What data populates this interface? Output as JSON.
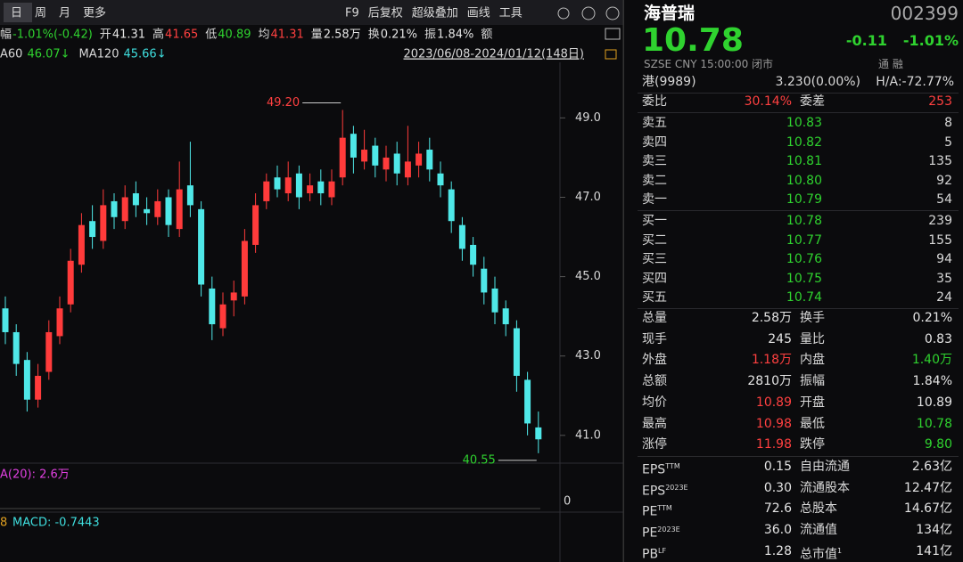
{
  "toolbar": {
    "periods": [
      "日",
      "周",
      "月",
      "更多"
    ],
    "tools": [
      "F9",
      "后复权",
      "超级叠加",
      "画线",
      "工具"
    ]
  },
  "quote_bar": [
    {
      "label": "幅",
      "value": "-1.01%(-0.42)",
      "color": "green"
    },
    {
      "label": "开",
      "value": "41.31",
      "color": "white"
    },
    {
      "label": "高",
      "value": "41.65",
      "color": "red"
    },
    {
      "label": "低",
      "value": "40.89",
      "color": "green"
    },
    {
      "label": "均",
      "value": "41.31",
      "color": "red"
    },
    {
      "label": "量",
      "value": "2.58万",
      "color": "white"
    },
    {
      "label": "换",
      "value": "0.21%",
      "color": "white"
    },
    {
      "label": "振",
      "value": "1.84%",
      "color": "white"
    },
    {
      "label": "额"
    }
  ],
  "ma_legend": [
    {
      "label": "A60",
      "value": "46.07↓",
      "color": "green"
    },
    {
      "label": "MA120",
      "value": "45.66↓",
      "color": "cyan"
    }
  ],
  "date_range": "2023/06/08-2024/01/12(148日)",
  "price_chart": {
    "type": "candlestick",
    "ylim": [
      40.3,
      50.4
    ],
    "yticks": [
      {
        "value": 41,
        "label": "41.0"
      },
      {
        "value": 43,
        "label": "43.0"
      },
      {
        "value": 45,
        "label": "45.0"
      },
      {
        "value": 47,
        "label": "47.0"
      },
      {
        "value": 49,
        "label": "49.0"
      }
    ],
    "up_color": "#ff3b3b",
    "down_color": "#4fe8e8",
    "open": [
      44.2,
      43.6,
      42.9,
      41.9,
      42.6,
      43.5,
      44.3,
      45.3,
      46.4,
      45.9,
      46.9,
      46.4,
      47.1,
      46.7,
      46.5,
      47.0,
      46.2,
      47.3,
      46.7,
      44.7,
      43.7,
      44.4,
      44.5,
      45.8,
      46.9,
      47.5,
      47.1,
      47.6,
      47.1,
      47.4,
      47.0,
      47.5,
      48.6,
      47.9,
      48.3,
      47.7,
      48.1,
      47.5,
      47.8,
      48.2,
      47.6,
      47.2,
      46.3,
      45.8,
      45.2,
      44.7,
      44.2,
      43.7,
      42.4,
      41.2
    ],
    "high": [
      44.5,
      43.8,
      43.1,
      42.8,
      43.9,
      44.5,
      45.7,
      46.6,
      46.8,
      47.2,
      47.1,
      47.3,
      47.4,
      47.0,
      47.2,
      47.2,
      47.9,
      48.4,
      46.9,
      45.0,
      44.6,
      44.9,
      46.2,
      47.1,
      47.6,
      47.8,
      47.9,
      47.8,
      47.6,
      47.7,
      47.7,
      49.2,
      48.8,
      48.7,
      48.5,
      48.3,
      48.4,
      48.8,
      48.4,
      48.5,
      47.9,
      47.4,
      46.5,
      46.0,
      45.5,
      45.0,
      44.4,
      43.9,
      42.6,
      41.6
    ],
    "low": [
      43.3,
      42.5,
      41.6,
      41.7,
      42.4,
      43.3,
      44.1,
      45.1,
      45.7,
      45.7,
      46.2,
      46.2,
      46.5,
      46.3,
      46.3,
      46.0,
      46.0,
      46.5,
      44.5,
      43.4,
      43.5,
      44.0,
      44.3,
      45.6,
      46.7,
      47.0,
      46.9,
      46.7,
      46.9,
      46.8,
      46.8,
      47.3,
      47.6,
      47.7,
      47.5,
      47.4,
      47.3,
      47.3,
      47.5,
      47.4,
      47.0,
      46.1,
      45.4,
      45.0,
      44.3,
      43.8,
      43.5,
      42.1,
      41.0,
      40.55
    ],
    "close": [
      43.6,
      42.8,
      41.9,
      42.5,
      43.6,
      44.2,
      45.4,
      46.3,
      46.0,
      46.8,
      46.5,
      47.0,
      46.8,
      46.6,
      46.9,
      46.3,
      47.2,
      46.8,
      44.8,
      43.8,
      44.3,
      44.6,
      45.9,
      46.8,
      47.4,
      47.2,
      47.5,
      47.0,
      47.3,
      47.1,
      47.4,
      48.5,
      48.0,
      48.2,
      47.8,
      48.0,
      47.6,
      47.9,
      48.1,
      47.7,
      47.3,
      46.4,
      45.7,
      45.3,
      44.6,
      44.1,
      43.8,
      42.5,
      41.3,
      40.9
    ],
    "annotations": [
      {
        "label": "49.20",
        "value": 49.2,
        "color": "red"
      },
      {
        "label": "40.55",
        "value": 40.55,
        "color": "green"
      }
    ]
  },
  "volume_panel": {
    "label": "A(20): 2.6万",
    "yticks": [
      0
    ]
  },
  "macd_panel": {
    "prefix": "8",
    "label": "MACD: -0.7443"
  },
  "stock": {
    "name": "海普瑞",
    "code": "002399",
    "price": "10.78",
    "change": "-0.11",
    "change_pct": "-1.01%",
    "status": "SZSE  CNY  15:00:00  闭市",
    "flags": "通 融"
  },
  "hk_row": {
    "label": "港(9989)",
    "value": "3.230(0.00%)",
    "ha": "H/A:-72.77%"
  },
  "commission": [
    {
      "label": "委比",
      "value": "30.14%",
      "color": "red"
    },
    {
      "label": "委差",
      "value": "253",
      "color": "red"
    }
  ],
  "sell": [
    {
      "label": "卖五",
      "price": "10.83",
      "volume": "8"
    },
    {
      "label": "卖四",
      "price": "10.82",
      "volume": "5"
    },
    {
      "label": "卖三",
      "price": "10.81",
      "volume": "135"
    },
    {
      "label": "卖二",
      "price": "10.80",
      "volume": "92"
    },
    {
      "label": "卖一",
      "price": "10.79",
      "volume": "54"
    }
  ],
  "buy": [
    {
      "label": "买一",
      "price": "10.78",
      "volume": "239"
    },
    {
      "label": "买二",
      "price": "10.77",
      "volume": "155"
    },
    {
      "label": "买三",
      "price": "10.76",
      "volume": "94"
    },
    {
      "label": "买四",
      "price": "10.75",
      "volume": "35"
    },
    {
      "label": "买五",
      "price": "10.74",
      "volume": "24"
    }
  ],
  "stats": [
    [
      {
        "label": "总量",
        "value": "2.58万",
        "color": "white"
      },
      {
        "label": "换手",
        "value": "0.21%",
        "color": "white"
      }
    ],
    [
      {
        "label": "现手",
        "value": "245",
        "color": "white"
      },
      {
        "label": "量比",
        "value": "0.83",
        "color": "white"
      }
    ],
    [
      {
        "label": "外盘",
        "value": "1.18万",
        "color": "red"
      },
      {
        "label": "内盘",
        "value": "1.40万",
        "color": "green"
      }
    ],
    [
      {
        "label": "总额",
        "value": "2810万",
        "color": "white"
      },
      {
        "label": "振幅",
        "value": "1.84%",
        "color": "white"
      }
    ],
    [
      {
        "label": "均价",
        "value": "10.89",
        "color": "red"
      },
      {
        "label": "开盘",
        "value": "10.89",
        "color": "white"
      }
    ],
    [
      {
        "label": "最高",
        "value": "10.98",
        "color": "red"
      },
      {
        "label": "最低",
        "value": "10.78",
        "color": "green"
      }
    ],
    [
      {
        "label": "涨停",
        "value": "11.98",
        "color": "red"
      },
      {
        "label": "跌停",
        "value": "9.80",
        "color": "green"
      }
    ]
  ],
  "finance": [
    [
      {
        "label": "EPS",
        "sup": "TTM",
        "value": "0.15"
      },
      {
        "label": "自由流通",
        "value": "2.63亿"
      }
    ],
    [
      {
        "label": "EPS",
        "sup": "2023E",
        "value": "0.30"
      },
      {
        "label": "流通股本",
        "value": "12.47亿"
      }
    ],
    [
      {
        "label": "PE",
        "sup": "TTM",
        "value": "72.6"
      },
      {
        "label": "总股本",
        "value": "14.67亿"
      }
    ],
    [
      {
        "label": "PE",
        "sup": "2023E",
        "value": "36.0"
      },
      {
        "label": "流通值",
        "value": "134亿"
      }
    ],
    [
      {
        "label": "PB",
        "sup": "LF",
        "value": "1.28"
      },
      {
        "label": "总市值",
        "sup": "1",
        "value": "141亿"
      }
    ]
  ]
}
